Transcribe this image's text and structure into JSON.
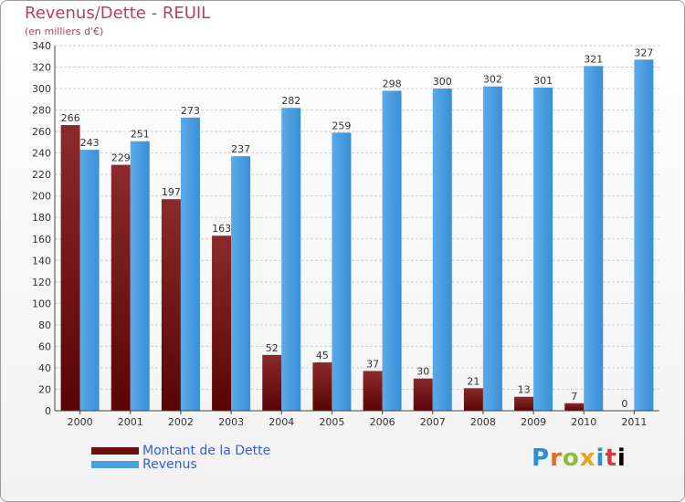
{
  "chart_data": {
    "type": "bar",
    "title": "Revenus/Dette - REUIL",
    "subtitle": "(en milliers d'€)",
    "categories": [
      "2000",
      "2001",
      "2002",
      "2003",
      "2004",
      "2005",
      "2006",
      "2007",
      "2008",
      "2009",
      "2010",
      "2011"
    ],
    "series": [
      {
        "name": "Montant de la Dette",
        "values": [
          266,
          229,
          197,
          163,
          52,
          45,
          37,
          30,
          21,
          13,
          7,
          0
        ],
        "color": "#6b0f10"
      },
      {
        "name": "Revenus",
        "values": [
          243,
          251,
          273,
          237,
          282,
          259,
          298,
          300,
          302,
          301,
          321,
          327
        ],
        "color": "#4a9fe0"
      }
    ],
    "ylim": [
      0,
      340
    ],
    "ytick_step": 20,
    "grid": true,
    "legend_position": "bottom-left"
  },
  "logo": {
    "letters": [
      "P",
      "r",
      "o",
      "x",
      "i",
      "t",
      "i"
    ]
  }
}
